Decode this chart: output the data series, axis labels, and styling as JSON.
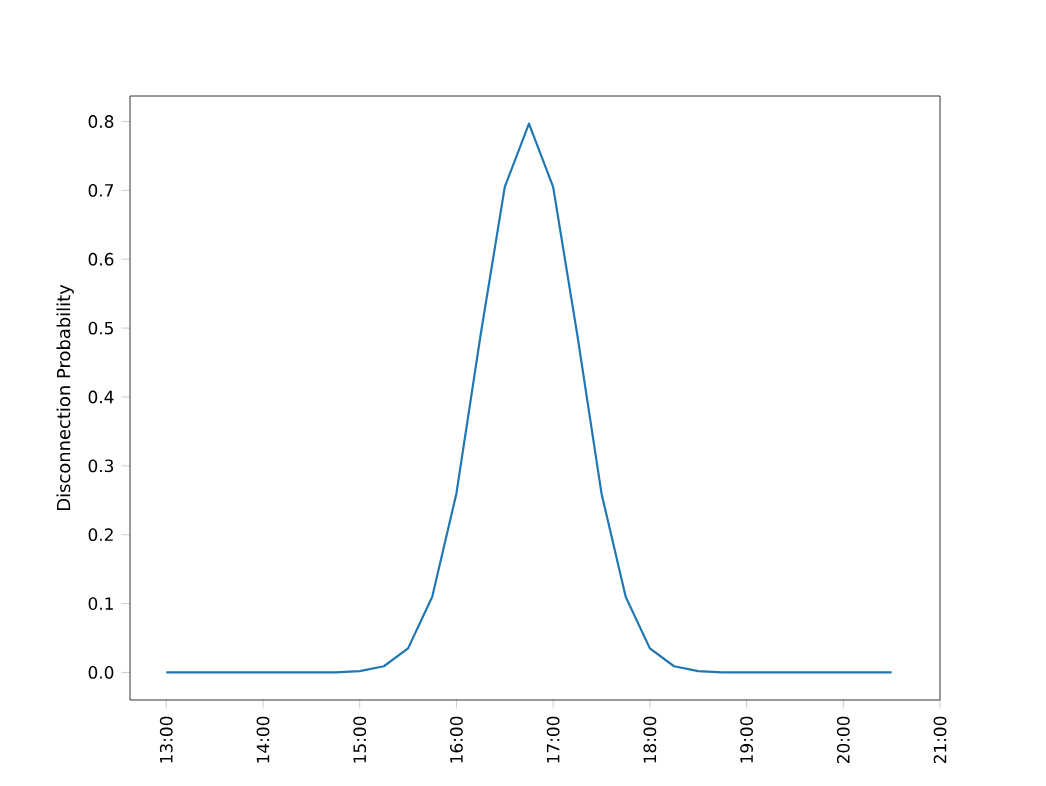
{
  "chart_data": {
    "type": "line",
    "ylabel": "Disconnection Probability",
    "x": [
      13,
      13.25,
      13.5,
      13.75,
      14,
      14.25,
      14.5,
      14.75,
      15,
      15.25,
      15.5,
      15.75,
      16,
      16.25,
      16.5,
      16.75,
      17,
      17.25,
      17.5,
      17.75,
      18,
      18.25,
      18.5,
      18.75,
      19,
      19.25,
      19.5,
      19.75,
      20,
      20.25,
      20.5
    ],
    "series": [
      {
        "color": "#1f77b4",
        "values": [
          0,
          0,
          0,
          0,
          0,
          0,
          0,
          0,
          0.002,
          0.009,
          0.035,
          0.11,
          0.26,
          0.49,
          0.705,
          0.797,
          0.705,
          0.49,
          0.26,
          0.11,
          0.035,
          0.009,
          0.002,
          0,
          0,
          0,
          0,
          0,
          0,
          0,
          0
        ]
      }
    ],
    "xlim": [
      12.625,
      21
    ],
    "ylim": [
      -0.04,
      0.837
    ],
    "xticks": [
      {
        "value": 13,
        "label": "13:00"
      },
      {
        "value": 14,
        "label": "14:00"
      },
      {
        "value": 15,
        "label": "15:00"
      },
      {
        "value": 16,
        "label": "16:00"
      },
      {
        "value": 17,
        "label": "17:00"
      },
      {
        "value": 18,
        "label": "18:00"
      },
      {
        "value": 19,
        "label": "19:00"
      },
      {
        "value": 20,
        "label": "20:00"
      },
      {
        "value": 21,
        "label": "21:00"
      }
    ],
    "yticks": [
      {
        "value": 0,
        "label": "0.0"
      },
      0.1,
      0.2,
      0.3,
      0.4,
      0.5,
      0.6,
      0.7,
      0.8
    ],
    "grid": false,
    "marker": "none",
    "line_style": "solid"
  }
}
